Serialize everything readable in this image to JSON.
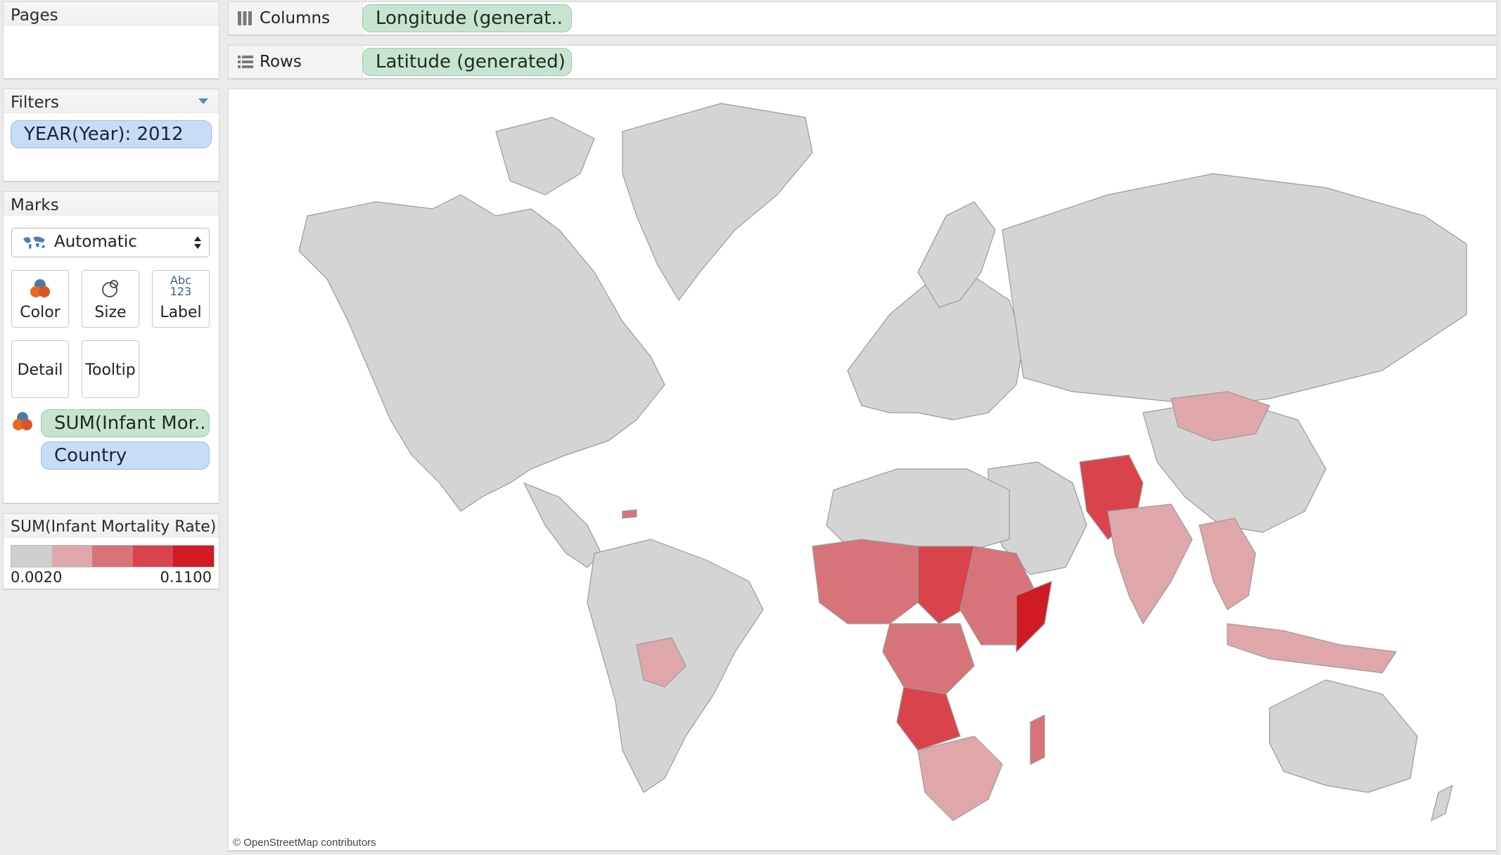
{
  "pages": {
    "title": "Pages"
  },
  "filters": {
    "title": "Filters",
    "items": [
      "YEAR(Year): 2012"
    ]
  },
  "marks": {
    "title": "Marks",
    "mark_type": "Automatic",
    "buttons": {
      "color": "Color",
      "size": "Size",
      "label": "Label",
      "label_icon_top": "Abc",
      "label_icon_bottom": "123",
      "detail": "Detail",
      "tooltip": "Tooltip"
    },
    "fields": {
      "color_field": "SUM(Infant Mor..",
      "detail_field": "Country"
    }
  },
  "legend": {
    "title": "SUM(Infant Mortality Rate)",
    "min": "0.0020",
    "max": "0.1100",
    "colors": [
      "#cfcfcf",
      "#e0a7aa",
      "#d77479",
      "#d9444c",
      "#d11a22"
    ]
  },
  "shelves": {
    "columns_label": "Columns",
    "columns_pill": "Longitude (generat..",
    "rows_label": "Rows",
    "rows_pill": "Latitude (generated)"
  },
  "map": {
    "attribution": "© OpenStreetMap contributors",
    "land_color": "#d4d4d4",
    "border_color": "#9a9a9a"
  }
}
